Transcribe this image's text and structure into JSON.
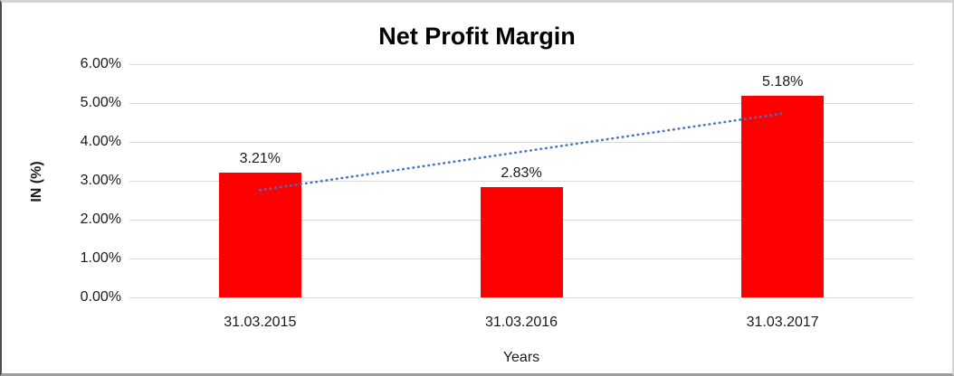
{
  "chart_data": {
    "type": "bar",
    "title": "Net Profit Margin",
    "xlabel": "Years",
    "ylabel": "IN (%)",
    "categories": [
      "31.03.2015",
      "31.03.2016",
      "31.03.2017"
    ],
    "values": [
      3.21,
      2.83,
      5.18
    ],
    "data_labels": [
      "3.21%",
      "2.83%",
      "5.18%"
    ],
    "ytick_labels": [
      "0.00%",
      "1.00%",
      "2.00%",
      "3.00%",
      "4.00%",
      "5.00%",
      "6.00%"
    ],
    "ytick_values": [
      0,
      1,
      2,
      3,
      4,
      5,
      6
    ],
    "ylim": [
      0,
      6
    ],
    "grid": true,
    "legend": "none",
    "bar_color": "#ff0000",
    "gridline_color": "#d9d9d9",
    "trendline": {
      "type": "linear",
      "style": "dotted",
      "color": "#4472c4",
      "start_value": 2.76,
      "end_value": 4.73
    }
  }
}
